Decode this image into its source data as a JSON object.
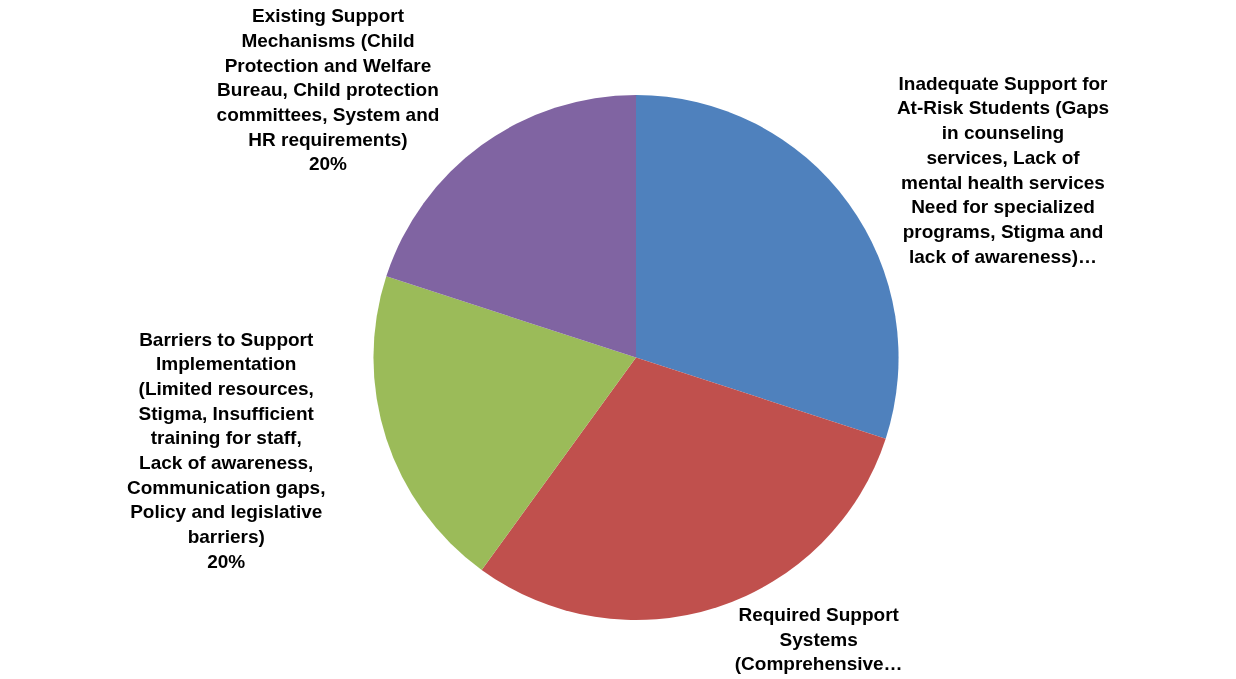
{
  "chart_data": {
    "type": "pie",
    "categories": [
      "Inadequate Support for At-Risk Students (Gaps in counseling services, Lack of mental health services\nNeed for specialized programs, Stigma and lack of awareness)…",
      "Required Support Systems (Comprehensive…",
      "Barriers to Support Implementation (Limited resources, Stigma, Insufficient training for staff, Lack of awareness, Communication gaps, Policy and legislative barriers)",
      "Existing Support Mechanisms (Child Protection and Welfare Bureau, Child protection committees, System and HR requirements)"
    ],
    "values": [
      30,
      30,
      20,
      20
    ],
    "value_labels": [
      null,
      null,
      "20%",
      "20%"
    ],
    "colors": [
      "#4f81bd",
      "#c0504d",
      "#9bbb59",
      "#8064a2"
    ],
    "legend": false
  }
}
